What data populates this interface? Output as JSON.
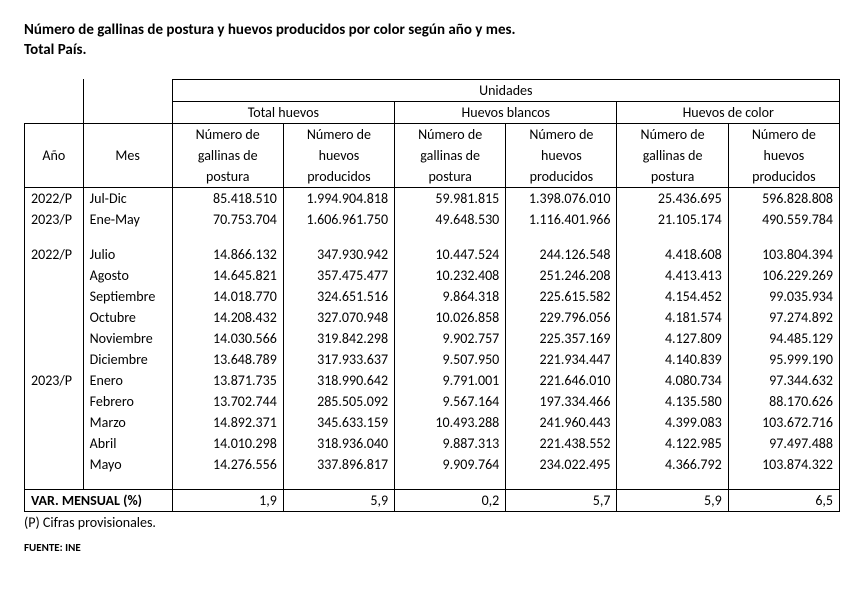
{
  "title_line1": "Número de gallinas de postura y huevos producidos por color según año y mes.",
  "title_line2": "Total País.",
  "headers": {
    "top": "Unidades",
    "ano": "Año",
    "mes": "Mes",
    "groups": {
      "total": "Total huevos",
      "blancos": "Huevos blancos",
      "color": "Huevos de color"
    },
    "sub_gallinas_l1": "Número de",
    "sub_gallinas_l2": "gallinas de",
    "sub_gallinas_l3": "postura",
    "sub_huevos_l1": "Número de",
    "sub_huevos_l2": "huevos",
    "sub_huevos_l3": "producidos"
  },
  "summary": [
    {
      "ano": "2022/P",
      "mes": "Jul-Dic",
      "tg": "85.418.510",
      "th": "1.994.904.818",
      "bg": "59.981.815",
      "bh": "1.398.076.010",
      "cg": "25.436.695",
      "ch": "596.828.808"
    },
    {
      "ano": "2023/P",
      "mes": "Ene-May",
      "tg": "70.753.704",
      "th": "1.606.961.750",
      "bg": "49.648.530",
      "bh": "1.116.401.966",
      "cg": "21.105.174",
      "ch": "490.559.784"
    }
  ],
  "months": [
    {
      "ano": "2022/P",
      "mes": "Julio",
      "tg": "14.866.132",
      "th": "347.930.942",
      "bg": "10.447.524",
      "bh": "244.126.548",
      "cg": "4.418.608",
      "ch": "103.804.394"
    },
    {
      "ano": "",
      "mes": "Agosto",
      "tg": "14.645.821",
      "th": "357.475.477",
      "bg": "10.232.408",
      "bh": "251.246.208",
      "cg": "4.413.413",
      "ch": "106.229.269"
    },
    {
      "ano": "",
      "mes": "Septiembre",
      "tg": "14.018.770",
      "th": "324.651.516",
      "bg": "9.864.318",
      "bh": "225.615.582",
      "cg": "4.154.452",
      "ch": "99.035.934"
    },
    {
      "ano": "",
      "mes": "Octubre",
      "tg": "14.208.432",
      "th": "327.070.948",
      "bg": "10.026.858",
      "bh": "229.796.056",
      "cg": "4.181.574",
      "ch": "97.274.892"
    },
    {
      "ano": "",
      "mes": "Noviembre",
      "tg": "14.030.566",
      "th": "319.842.298",
      "bg": "9.902.757",
      "bh": "225.357.169",
      "cg": "4.127.809",
      "ch": "94.485.129"
    },
    {
      "ano": "",
      "mes": "Diciembre",
      "tg": "13.648.789",
      "th": "317.933.637",
      "bg": "9.507.950",
      "bh": "221.934.447",
      "cg": "4.140.839",
      "ch": "95.999.190"
    },
    {
      "ano": "2023/P",
      "mes": "Enero",
      "tg": "13.871.735",
      "th": "318.990.642",
      "bg": "9.791.001",
      "bh": "221.646.010",
      "cg": "4.080.734",
      "ch": "97.344.632"
    },
    {
      "ano": "",
      "mes": "Febrero",
      "tg": "13.702.744",
      "th": "285.505.092",
      "bg": "9.567.164",
      "bh": "197.334.466",
      "cg": "4.135.580",
      "ch": "88.170.626"
    },
    {
      "ano": "",
      "mes": "Marzo",
      "tg": "14.892.371",
      "th": "345.633.159",
      "bg": "10.493.288",
      "bh": "241.960.443",
      "cg": "4.399.083",
      "ch": "103.672.716"
    },
    {
      "ano": "",
      "mes": "Abril",
      "tg": "14.010.298",
      "th": "318.936.040",
      "bg": "9.887.313",
      "bh": "221.438.552",
      "cg": "4.122.985",
      "ch": "97.497.488"
    },
    {
      "ano": "",
      "mes": "Mayo",
      "tg": "14.276.556",
      "th": "337.896.817",
      "bg": "9.909.764",
      "bh": "234.022.495",
      "cg": "4.366.792",
      "ch": "103.874.322"
    }
  ],
  "var_row": {
    "label": "VAR. MENSUAL (%)",
    "tg": "1,9",
    "th": "5,9",
    "bg": "0,2",
    "bh": "5,7",
    "cg": "5,9",
    "ch": "6,5"
  },
  "footnote": "(P) Cifras provisionales.",
  "source": "FUENTE: INE"
}
